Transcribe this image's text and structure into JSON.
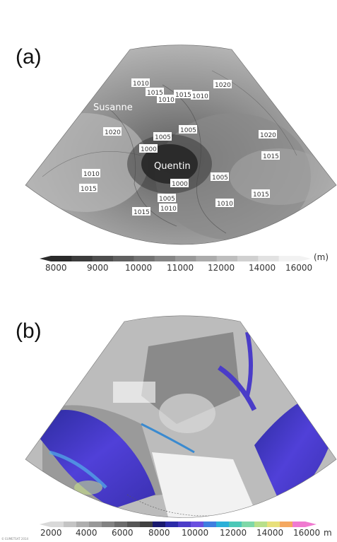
{
  "panel_a": {
    "label": "(a)",
    "storm_names": [
      "Susanne",
      "Quentin"
    ],
    "isobar_labels": [
      "1010",
      "1015",
      "1010",
      "1015",
      "1010",
      "1020",
      "1020",
      "1005",
      "1005",
      "1000",
      "1020",
      "1015",
      "1010",
      "1015",
      "1000",
      "1005",
      "1005",
      "1010",
      "1015",
      "1010",
      "1015"
    ],
    "colorbar": {
      "ticks": [
        "8000",
        "9000",
        "10000",
        "11000",
        "12000",
        "14000",
        "16000"
      ],
      "unit": "(m)",
      "colors": [
        "#2a2a2a",
        "#3c3c3c",
        "#4e4e4e",
        "#606060",
        "#727272",
        "#858585",
        "#989898",
        "#ababab",
        "#bebebe",
        "#d0d0d0",
        "#e2e2e2",
        "#f2f2f2"
      ]
    }
  },
  "panel_b": {
    "label": "(b)",
    "colorbar": {
      "ticks": [
        "2000",
        "4000",
        "6000",
        "8000",
        "10000",
        "12000",
        "14000",
        "16000"
      ],
      "unit": "m",
      "colors": [
        "#d9d9d9",
        "#c4c4c4",
        "#aeaeae",
        "#989898",
        "#828282",
        "#6c6c6c",
        "#565656",
        "#404040",
        "#1a1a6e",
        "#2b2ba8",
        "#4b3cc8",
        "#6a4fe0",
        "#3f7ee0",
        "#2bb0d8",
        "#4cc8b8",
        "#7ed8a8",
        "#b8e08a",
        "#e8e07a",
        "#f4a860",
        "#f07ad0"
      ]
    }
  },
  "credit": "© EUMETSAT 2014"
}
